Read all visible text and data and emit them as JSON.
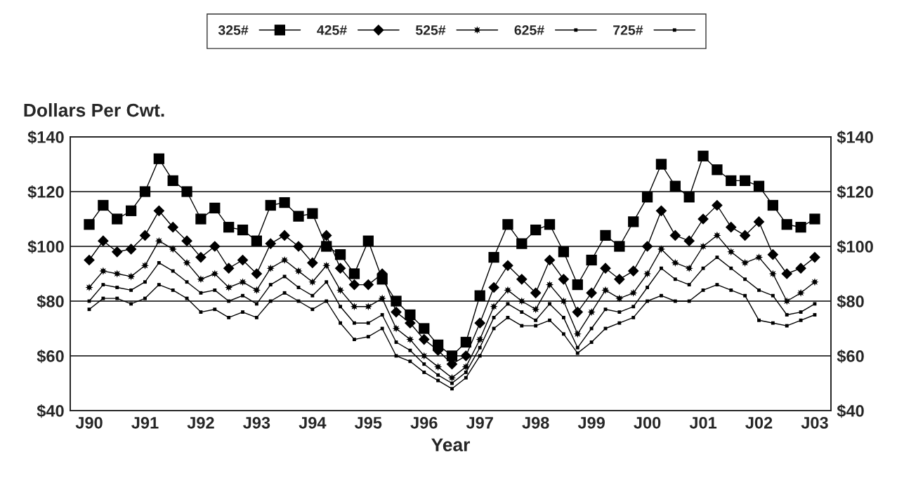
{
  "chart_data": {
    "type": "line",
    "ylabel": "Dollars Per Cwt.",
    "xlabel": "Year",
    "categories": [
      "J90",
      null,
      null,
      null,
      "J91",
      null,
      null,
      null,
      "J92",
      null,
      null,
      null,
      "J93",
      null,
      null,
      null,
      "J94",
      null,
      null,
      null,
      "J95",
      null,
      null,
      null,
      "J96",
      null,
      null,
      null,
      "J97",
      null,
      null,
      null,
      "J98",
      null,
      null,
      null,
      "J99",
      null,
      null,
      null,
      "J00",
      null,
      null,
      null,
      "J01",
      null,
      null,
      null,
      "J02",
      null,
      null,
      null,
      "J03"
    ],
    "series": [
      {
        "name": "325#",
        "color": "#000000",
        "marker": "square",
        "values": [
          108,
          115,
          110,
          113,
          120,
          132,
          124,
          120,
          110,
          114,
          107,
          106,
          102,
          115,
          116,
          111,
          112,
          100,
          97,
          90,
          102,
          88,
          80,
          75,
          70,
          64,
          60,
          65,
          82,
          96,
          108,
          101,
          106,
          108,
          98,
          86,
          95,
          104,
          100,
          109,
          118,
          130,
          122,
          118,
          133,
          128,
          124,
          124,
          122,
          115,
          108,
          107,
          110
        ]
      },
      {
        "name": "425#",
        "color": "#000000",
        "marker": "diamond",
        "values": [
          95,
          102,
          98,
          99,
          104,
          113,
          107,
          102,
          96,
          100,
          92,
          95,
          90,
          101,
          104,
          100,
          94,
          104,
          92,
          86,
          86,
          90,
          76,
          72,
          66,
          62,
          57,
          60,
          72,
          85,
          93,
          88,
          83,
          95,
          88,
          76,
          83,
          92,
          88,
          91,
          100,
          113,
          104,
          102,
          110,
          115,
          107,
          104,
          109,
          97,
          90,
          92,
          96
        ]
      },
      {
        "name": "525#",
        "color": "#000000",
        "marker": "star",
        "values": [
          85,
          91,
          90,
          89,
          93,
          102,
          99,
          94,
          88,
          90,
          85,
          87,
          84,
          92,
          95,
          91,
          87,
          93,
          84,
          78,
          78,
          81,
          70,
          66,
          60,
          56,
          52,
          56,
          66,
          78,
          84,
          80,
          77,
          86,
          80,
          68,
          76,
          84,
          81,
          83,
          90,
          99,
          94,
          92,
          100,
          104,
          98,
          94,
          96,
          90,
          80,
          83,
          87
        ]
      },
      {
        "name": "625#",
        "color": "#000000",
        "marker": "square",
        "values": [
          80,
          86,
          85,
          84,
          87,
          94,
          91,
          87,
          83,
          84,
          80,
          82,
          79,
          86,
          89,
          85,
          82,
          87,
          78,
          72,
          72,
          75,
          65,
          62,
          57,
          53,
          50,
          54,
          63,
          74,
          79,
          76,
          73,
          79,
          74,
          63,
          70,
          77,
          76,
          78,
          85,
          92,
          88,
          86,
          92,
          96,
          92,
          88,
          84,
          82,
          75,
          76,
          79
        ]
      },
      {
        "name": "725#",
        "color": "#000000",
        "marker": "square",
        "values": [
          77,
          81,
          81,
          79,
          81,
          86,
          84,
          81,
          76,
          77,
          74,
          76,
          74,
          80,
          83,
          80,
          77,
          80,
          72,
          66,
          67,
          70,
          60,
          58,
          54,
          51,
          48,
          52,
          60,
          70,
          74,
          71,
          71,
          73,
          68,
          61,
          65,
          70,
          72,
          74,
          80,
          82,
          80,
          80,
          84,
          86,
          84,
          82,
          73,
          72,
          71,
          73,
          75
        ]
      }
    ],
    "ylim": [
      40,
      140
    ],
    "yticks": [
      {
        "value": 40,
        "label": "$40"
      },
      {
        "value": 60,
        "label": "$60"
      },
      {
        "value": 80,
        "label": "$80"
      },
      {
        "value": 100,
        "label": "$100"
      },
      {
        "value": 120,
        "label": "$120"
      },
      {
        "value": 140,
        "label": "$140"
      }
    ],
    "y2lim": [
      40,
      140
    ],
    "y2ticks": [
      {
        "value": 40,
        "label": "$40"
      },
      {
        "value": 60,
        "label": "$60"
      },
      {
        "value": 80,
        "label": "$80"
      },
      {
        "value": 100,
        "label": "$100"
      },
      {
        "value": 120,
        "label": "$120"
      },
      {
        "value": 140,
        "label": "$140"
      }
    ],
    "grid": "y",
    "legend": "top",
    "line_style": "solid"
  }
}
